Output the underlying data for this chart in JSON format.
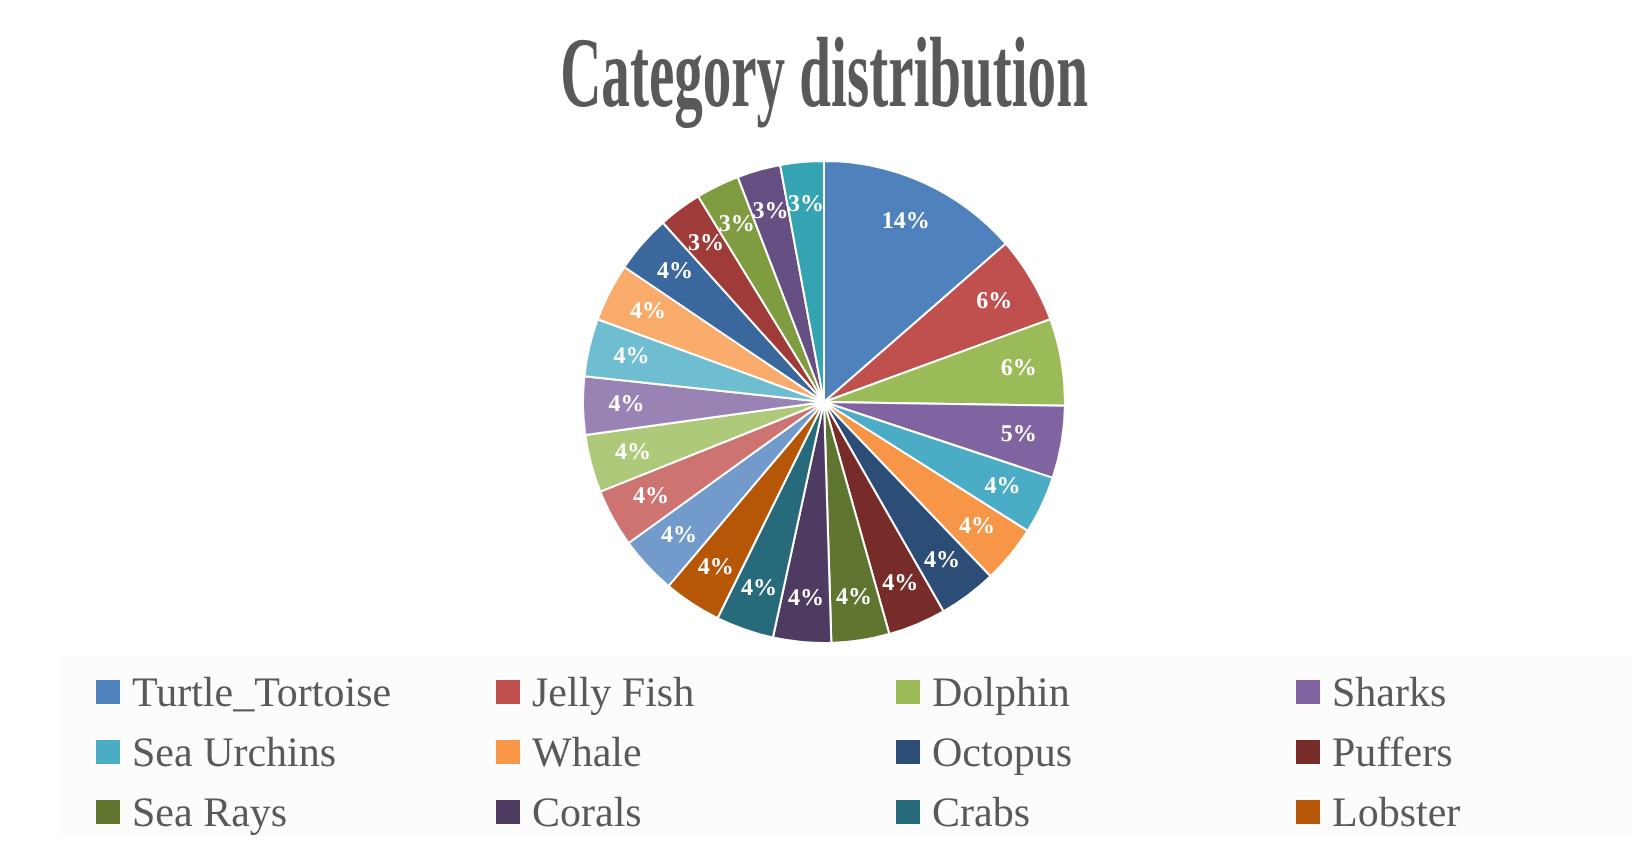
{
  "chart_data": {
    "type": "pie",
    "title": "Category distribution",
    "categories": [
      "Turtle_Tortoise",
      "Jelly Fish",
      "Dolphin",
      "Sharks",
      "Sea Urchins",
      "Whale",
      "Octopus",
      "Puffers",
      "Sea Rays",
      "Corals",
      "Crabs",
      "Lobster",
      null,
      null,
      null,
      null,
      null,
      null,
      null,
      null,
      null,
      null,
      null
    ],
    "values": [
      14,
      6,
      6,
      5,
      4,
      4,
      4,
      4,
      4,
      4,
      4,
      4,
      4,
      4,
      4,
      4,
      4,
      4,
      4,
      3,
      3,
      3,
      3
    ],
    "colors": [
      "#4f81bd",
      "#c0504d",
      "#9bbb59",
      "#8064a2",
      "#4bacc6",
      "#f79646",
      "#2c4d75",
      "#772c2a",
      "#5f7530",
      "#4d3b62",
      "#276a7c",
      "#b65708",
      "#729aca",
      "#cd7371",
      "#afc97a",
      "#9983b5",
      "#6fbdd1",
      "#f9ab6b",
      "#3a679c",
      "#9f3b38",
      "#7f9c40",
      "#664f83",
      "#34a4b2"
    ],
    "value_labels": [
      "14%",
      "6%",
      "6%",
      "5%",
      "4%",
      "4%",
      "4%",
      "4%",
      "4%",
      "4%",
      "4%",
      "4%",
      "4%",
      "4%",
      "4%",
      "4%",
      "4%",
      "4%",
      "4%",
      "3%",
      "3%",
      "3%",
      "3%"
    ],
    "legend": "bottom"
  }
}
